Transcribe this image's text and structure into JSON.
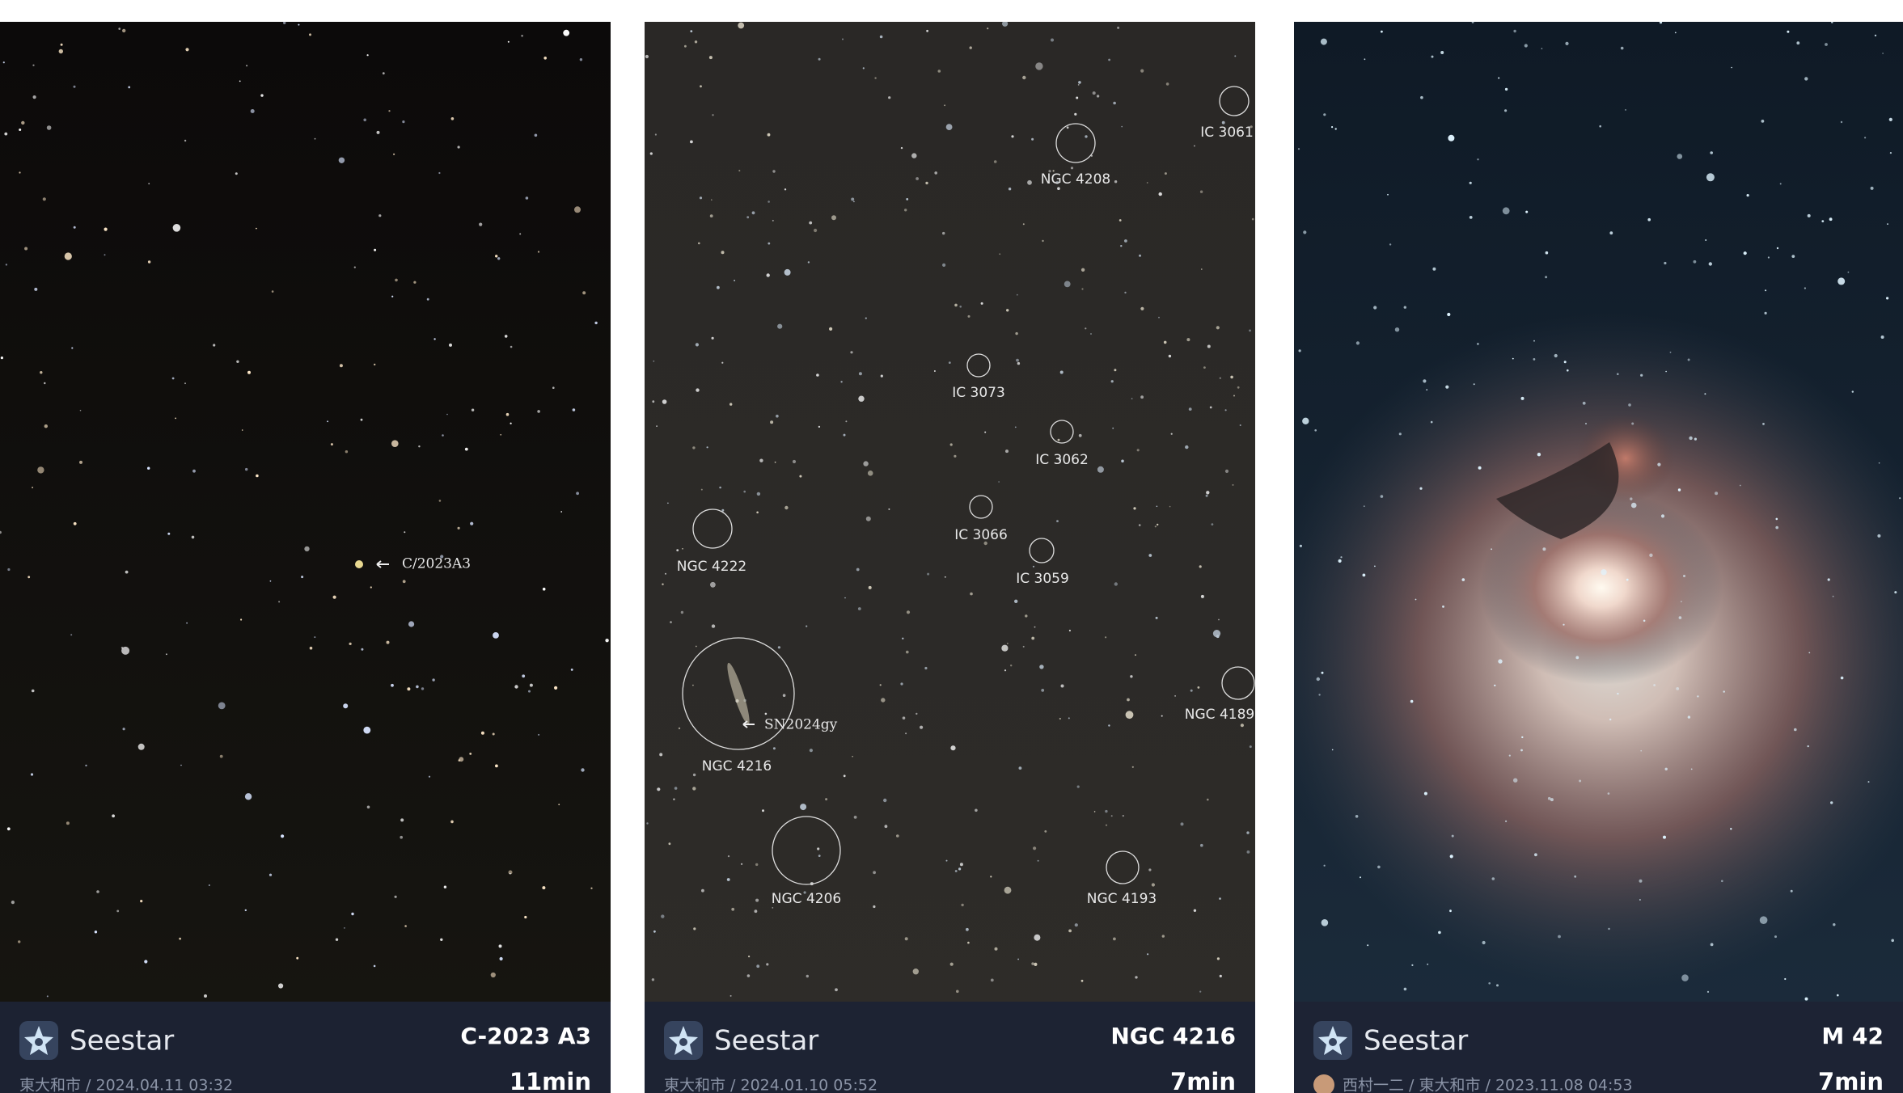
{
  "panels": [
    {
      "brand": "Seestar",
      "title": "C-2023 A3",
      "meta": "東大和市 / 2024.04.11 03:32",
      "duration": "11min",
      "annotations": [
        "C/2023A3"
      ]
    },
    {
      "brand": "Seestar",
      "title": "NGC 4216",
      "meta": "東大和市 / 2024.01.10 05:52",
      "duration": "7min",
      "annotations": [
        "IC 3061",
        "NGC 4208",
        "IC 3073",
        "IC 3062",
        "IC 3066",
        "IC 3059",
        "NGC 4222",
        "NGC 4216",
        "NGC 4189",
        "NGC 4206",
        "NGC 4193",
        "SN2024gy"
      ]
    },
    {
      "brand": "Seestar",
      "title": "M 42",
      "meta": "西村一二 / 東大和市 / 2023.11.08 04:53",
      "duration": "7min",
      "annotations": []
    }
  ]
}
